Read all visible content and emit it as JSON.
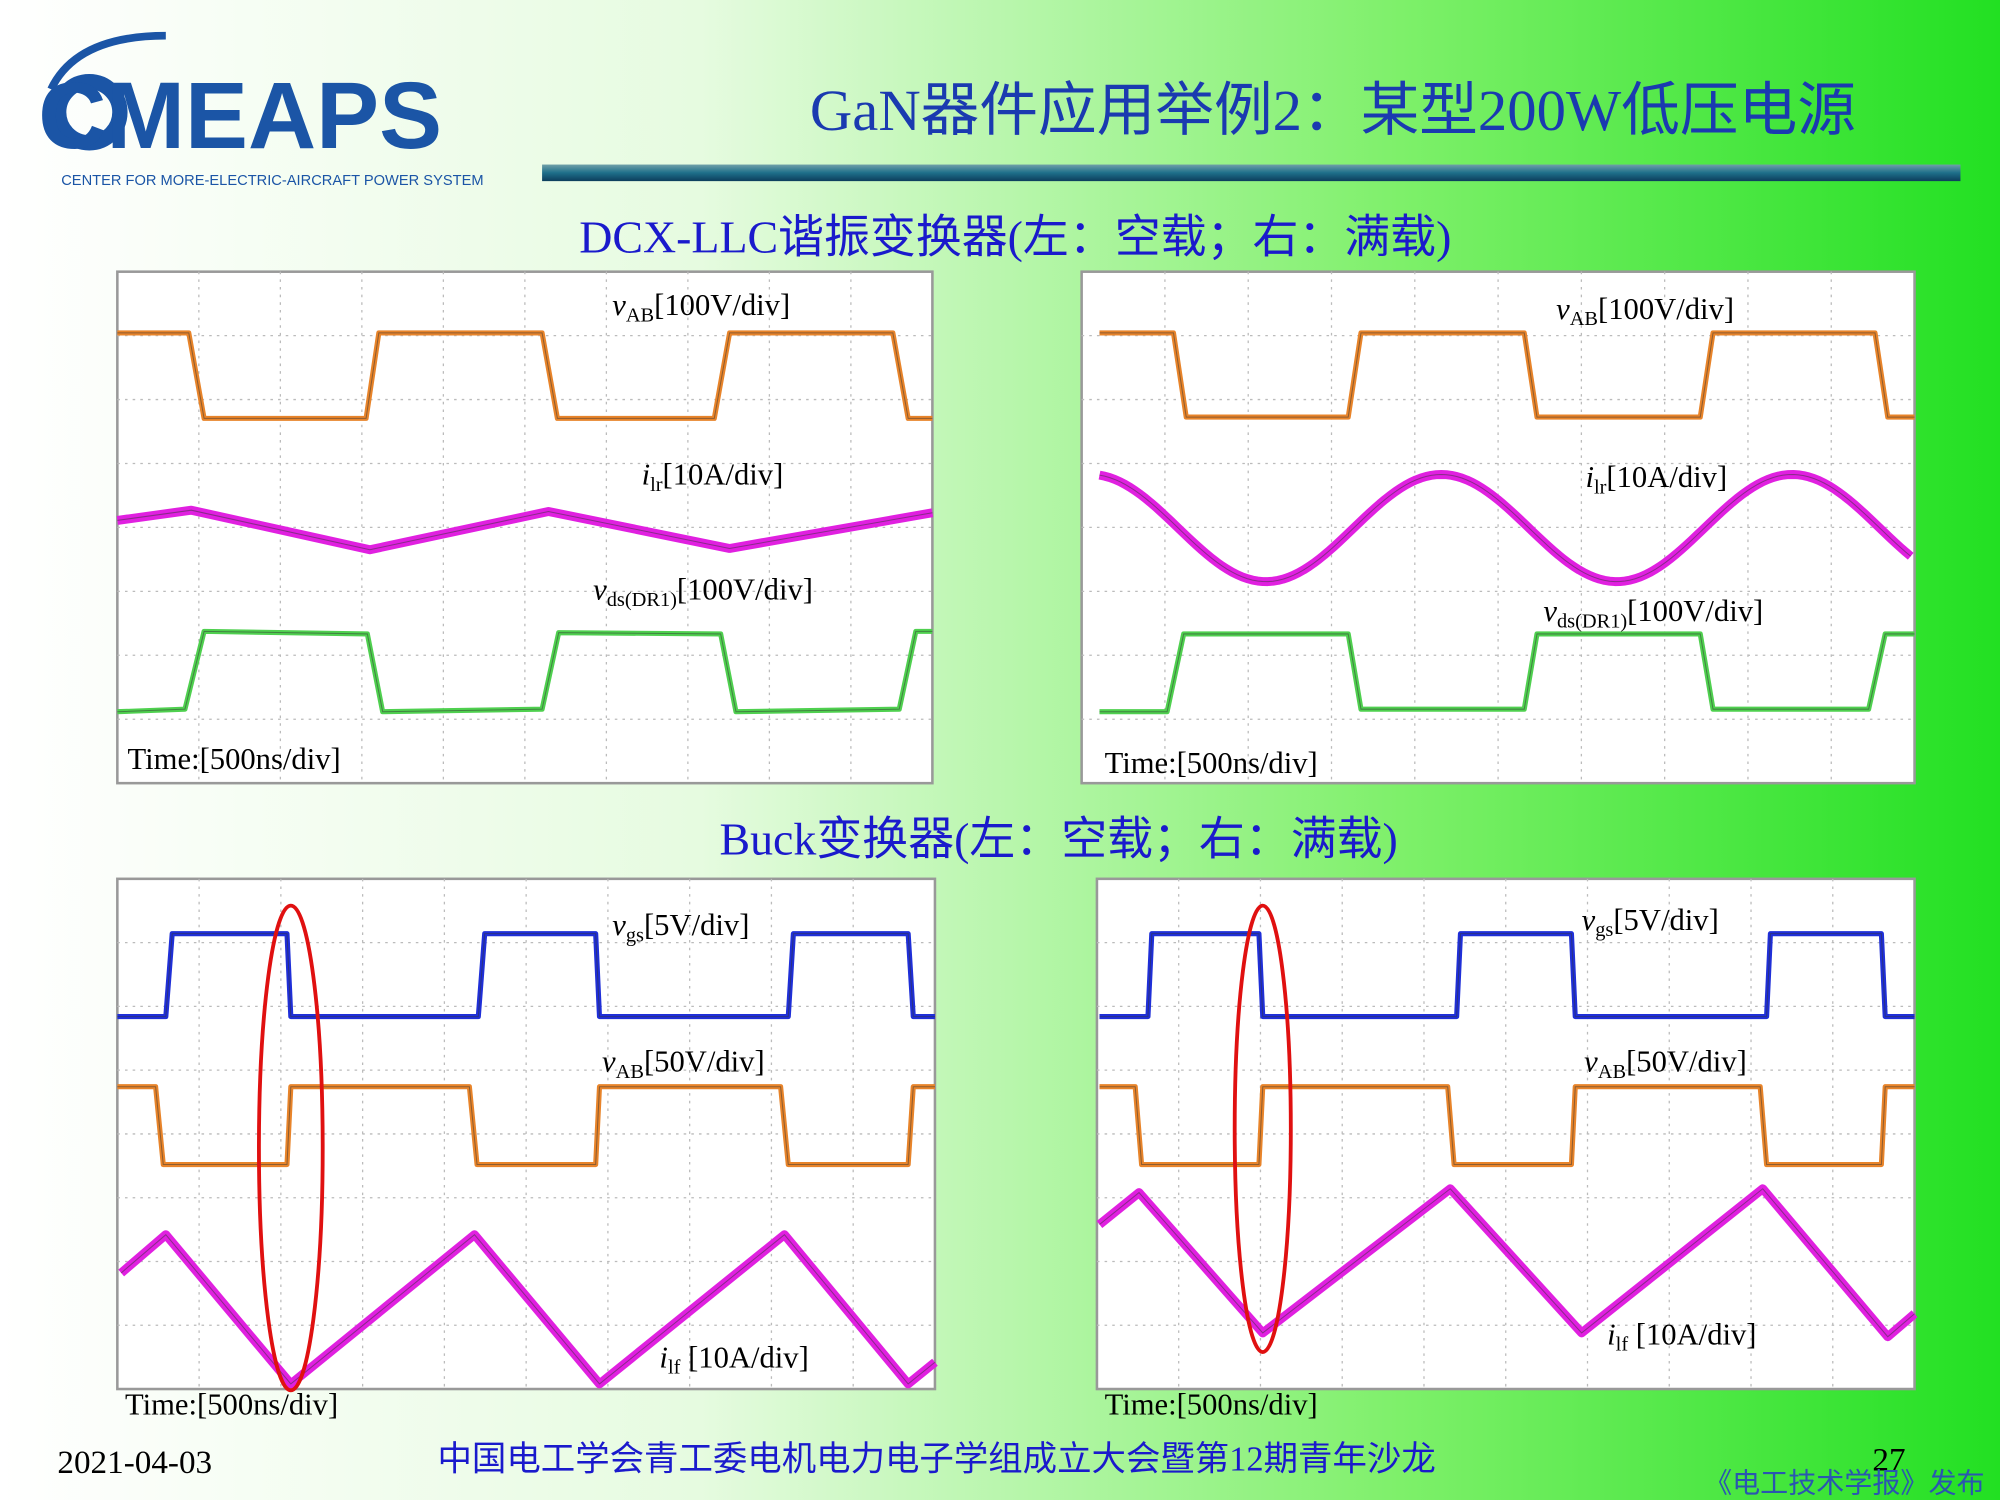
{
  "header": {
    "logo": "CMEAPS",
    "logo_subtitle": "CENTER FOR MORE-ELECTRIC-AIRCRAFT POWER SYSTEM",
    "title": "GaN器件应用举例2：某型200W低压电源"
  },
  "sections": [
    {
      "heading": "DCX-LLC谐振变换器(左：空载；右：满载)",
      "panels": [
        {
          "labels": [
            {
              "symbol": "v",
              "sub": "AB",
              "scale": "[100V/div]"
            },
            {
              "symbol": "i",
              "sub": "lr",
              "scale": "[10A/div]"
            },
            {
              "symbol": "v",
              "sub": "ds(DR1)",
              "scale": "[100V/div]"
            }
          ],
          "time": "Time:[500ns/div]"
        },
        {
          "labels": [
            {
              "symbol": "v",
              "sub": "AB",
              "scale": "[100V/div]"
            },
            {
              "symbol": "i",
              "sub": "lr",
              "scale": "[10A/div]"
            },
            {
              "symbol": "v",
              "sub": "ds(DR1)",
              "scale": "[100V/div]"
            }
          ],
          "time": "Time:[500ns/div]"
        }
      ]
    },
    {
      "heading": "Buck变换器(左：空载；右：满载)",
      "panels": [
        {
          "labels": [
            {
              "symbol": "v",
              "sub": "gs",
              "scale": "[5V/div]"
            },
            {
              "symbol": "v",
              "sub": "AB",
              "scale": "[50V/div]"
            },
            {
              "symbol": "i",
              "sub": "lf",
              "scale": " [10A/div]"
            }
          ],
          "time": "Time:[500ns/div]"
        },
        {
          "labels": [
            {
              "symbol": "v",
              "sub": "gs",
              "scale": "[5V/div]"
            },
            {
              "symbol": "v",
              "sub": "AB",
              "scale": "[50V/div]"
            },
            {
              "symbol": "i",
              "sub": "lf",
              "scale": " [10A/div]"
            }
          ],
          "time": "Time:[500ns/div]"
        }
      ]
    }
  ],
  "footer": {
    "date": "2021-04-03",
    "event": "中国电工学会青工委电机电力电子学组成立大会暨第12期青年沙龙",
    "page": "27",
    "watermark": "《电工技术学报》发布"
  }
}
